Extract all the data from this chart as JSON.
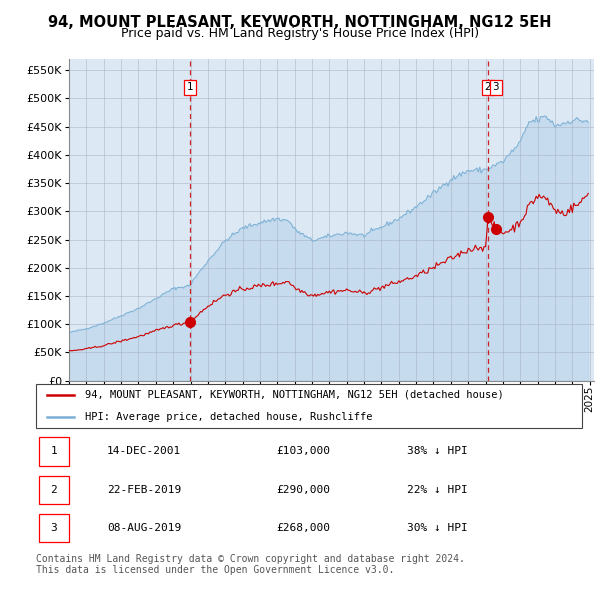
{
  "title": "94, MOUNT PLEASANT, KEYWORTH, NOTTINGHAM, NG12 5EH",
  "subtitle": "Price paid vs. HM Land Registry's House Price Index (HPI)",
  "title_fontsize": 10.5,
  "subtitle_fontsize": 9,
  "background_color": "#ffffff",
  "plot_background": "#dce9f5",
  "hpi_color": "#7bafd4",
  "hpi_fill_color": "#b8d4ea",
  "price_color": "#cc0000",
  "marker_color": "#cc0000",
  "vline_color": "#cc0000",
  "ylim": [
    0,
    570000
  ],
  "yticks": [
    0,
    50000,
    100000,
    150000,
    200000,
    250000,
    300000,
    350000,
    400000,
    450000,
    500000,
    550000
  ],
  "transactions": [
    {
      "date": "2001-12-14",
      "price": 103000,
      "label": "1"
    },
    {
      "date": "2019-02-22",
      "price": 290000,
      "label": "2"
    },
    {
      "date": "2019-08-08",
      "price": 268000,
      "label": "3"
    }
  ],
  "vline_dates": [
    "2001-12-14",
    "2019-02-22"
  ],
  "legend_entries": [
    "94, MOUNT PLEASANT, KEYWORTH, NOTTINGHAM, NG12 5EH (detached house)",
    "HPI: Average price, detached house, Rushcliffe"
  ],
  "table_rows": [
    [
      "1",
      "14-DEC-2001",
      "£103,000",
      "38% ↓ HPI"
    ],
    [
      "2",
      "22-FEB-2019",
      "£290,000",
      "22% ↓ HPI"
    ],
    [
      "3",
      "08-AUG-2019",
      "£268,000",
      "30% ↓ HPI"
    ]
  ],
  "footer": "Contains HM Land Registry data © Crown copyright and database right 2024.\nThis data is licensed under the Open Government Licence v3.0.",
  "footer_fontsize": 7
}
